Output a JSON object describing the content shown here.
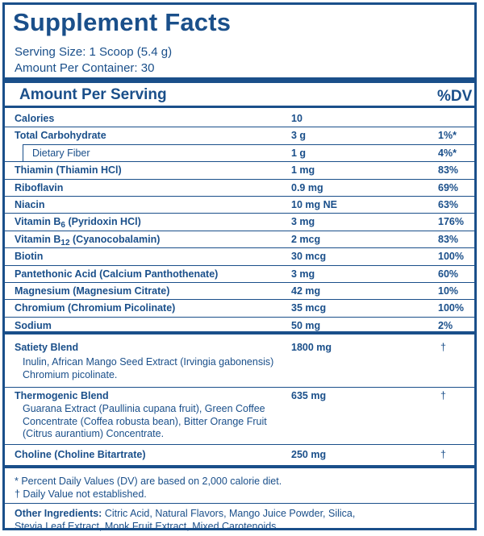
{
  "title": "Supplement Facts",
  "serving_size": "Serving Size: 1 Scoop (5.4 g)",
  "amount_per_container": "Amount Per Container: 30",
  "header": {
    "amount_label": "Amount Per Serving",
    "dv_label": "%DV"
  },
  "nutrients": [
    {
      "name": "Calories",
      "amount": "10",
      "dv": ""
    },
    {
      "name": "Total Carbohydrate",
      "amount": "3 g",
      "dv": "1%*"
    },
    {
      "name": "Dietary Fiber",
      "amount": "1 g",
      "dv": "4%*"
    },
    {
      "name": "Thiamin (Thiamin HCl)",
      "amount": "1 mg",
      "dv": "83%"
    },
    {
      "name": "Riboflavin",
      "amount": "0.9 mg",
      "dv": "69%"
    },
    {
      "name": "Niacin",
      "amount": "10 mg NE",
      "dv": "63%"
    },
    {
      "name_pre": "Vitamin B",
      "name_sub": "6",
      "name_post": " (Pyridoxin HCl)",
      "amount": "3 mg",
      "dv": "176%"
    },
    {
      "name_pre": "Vitamin B",
      "name_sub": "12",
      "name_post": " (Cyanocobalamin)",
      "amount": "2 mcg",
      "dv": "83%"
    },
    {
      "name": "Biotin",
      "amount": "30 mcg",
      "dv": "100%"
    },
    {
      "name": "Pantethonic Acid (Calcium Panthothenate)",
      "amount": "3 mg",
      "dv": "60%"
    },
    {
      "name": "Magnesium (Magnesium Citrate)",
      "amount": "42 mg",
      "dv": "10%"
    },
    {
      "name": "Chromium (Chromium Picolinate)",
      "amount": "35 mcg",
      "dv": "100%"
    },
    {
      "name": "Sodium",
      "amount": "50 mg",
      "dv": "2%"
    }
  ],
  "blends": [
    {
      "name": "Satiety Blend",
      "amount": "1800 mg",
      "dv": "†",
      "desc": "Inulin, African Mango Seed Extract (Irvingia gabonensis) Chromium picolinate."
    },
    {
      "name": "Thermogenic Blend",
      "amount": "635 mg",
      "dv": "†",
      "desc": "Guarana Extract (Paullinia cupana fruit), Green Coffee Concentrate (Coffea robusta bean), Bitter Orange Fruit (Citrus aurantium) Concentrate."
    },
    {
      "name": "Choline (Choline Bitartrate)",
      "amount": "250 mg",
      "dv": "†",
      "desc": ""
    }
  ],
  "footnotes": {
    "percent_dv": "* Percent Daily Values (DV) are based on 2,000 calorie diet.",
    "not_established": "† Daily Value not established."
  },
  "other_ingredients": {
    "label": "Other Ingredients:",
    "text": " Citric Acid, Natural Flavors, Mango Juice Powder, Silica, Stevia Leaf Extract, Monk Fruit Extract, Mixed Carotenoids."
  }
}
